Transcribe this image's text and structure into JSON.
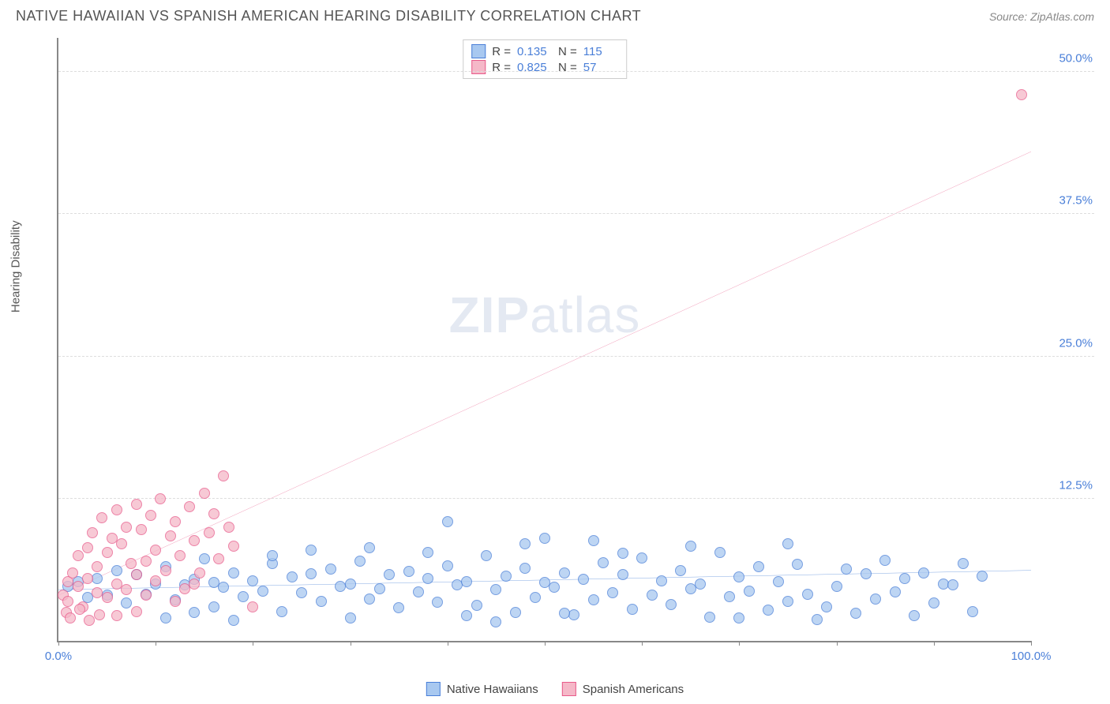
{
  "header": {
    "title": "NATIVE HAWAIIAN VS SPANISH AMERICAN HEARING DISABILITY CORRELATION CHART",
    "source": "Source: ZipAtlas.com"
  },
  "watermark": {
    "zip": "ZIP",
    "atlas": "atlas"
  },
  "chart": {
    "type": "scatter",
    "y_axis_label": "Hearing Disability",
    "x_range": [
      0,
      100
    ],
    "y_range": [
      0,
      53
    ],
    "x_ticks": [
      0,
      10,
      20,
      30,
      40,
      50,
      60,
      70,
      80,
      90,
      100
    ],
    "x_tick_labels": {
      "0": "0.0%",
      "100": "100.0%"
    },
    "y_ticks": [
      12.5,
      25.0,
      37.5,
      50.0
    ],
    "y_tick_labels": [
      "12.5%",
      "25.0%",
      "37.5%",
      "50.0%"
    ],
    "grid_color": "#dddddd",
    "axis_color": "#888888",
    "background_color": "#ffffff",
    "point_radius": 7,
    "series": [
      {
        "name": "Native Hawaiians",
        "fill": "#a8c8f0",
        "stroke": "#4a7fd8",
        "R": "0.135",
        "N": "115",
        "trend": {
          "x1": 0,
          "y1": 4.5,
          "x2": 100,
          "y2": 6.2,
          "color": "#2f6fd0",
          "width": 2
        },
        "points": [
          [
            1,
            4.8
          ],
          [
            2,
            5.2
          ],
          [
            3,
            3.8
          ],
          [
            4,
            5.5
          ],
          [
            5,
            4.0
          ],
          [
            6,
            6.2
          ],
          [
            7,
            3.3
          ],
          [
            8,
            5.8
          ],
          [
            9,
            4.1
          ],
          [
            10,
            5.0
          ],
          [
            11,
            6.5
          ],
          [
            12,
            3.6
          ],
          [
            13,
            4.9
          ],
          [
            14,
            5.4
          ],
          [
            15,
            7.2
          ],
          [
            16,
            3.0
          ],
          [
            16,
            5.1
          ],
          [
            17,
            4.7
          ],
          [
            18,
            6.0
          ],
          [
            19,
            3.9
          ],
          [
            20,
            5.3
          ],
          [
            21,
            4.4
          ],
          [
            22,
            6.8
          ],
          [
            23,
            2.6
          ],
          [
            24,
            5.6
          ],
          [
            25,
            4.2
          ],
          [
            26,
            5.9
          ],
          [
            27,
            3.5
          ],
          [
            28,
            6.3
          ],
          [
            29,
            4.8
          ],
          [
            30,
            5.0
          ],
          [
            30,
            2.0
          ],
          [
            31,
            7.0
          ],
          [
            32,
            3.7
          ],
          [
            33,
            4.6
          ],
          [
            34,
            5.8
          ],
          [
            35,
            2.9
          ],
          [
            36,
            6.1
          ],
          [
            37,
            4.3
          ],
          [
            38,
            5.5
          ],
          [
            39,
            3.4
          ],
          [
            40,
            6.6
          ],
          [
            40,
            10.5
          ],
          [
            41,
            4.9
          ],
          [
            42,
            5.2
          ],
          [
            43,
            3.1
          ],
          [
            44,
            7.5
          ],
          [
            45,
            4.5
          ],
          [
            46,
            5.7
          ],
          [
            47,
            2.5
          ],
          [
            48,
            6.4
          ],
          [
            49,
            3.8
          ],
          [
            50,
            5.1
          ],
          [
            50,
            9.0
          ],
          [
            51,
            4.7
          ],
          [
            52,
            6.0
          ],
          [
            53,
            2.3
          ],
          [
            54,
            5.4
          ],
          [
            55,
            3.6
          ],
          [
            56,
            6.9
          ],
          [
            57,
            4.2
          ],
          [
            58,
            5.8
          ],
          [
            59,
            2.8
          ],
          [
            60,
            7.3
          ],
          [
            61,
            4.0
          ],
          [
            62,
            5.3
          ],
          [
            63,
            3.2
          ],
          [
            64,
            6.2
          ],
          [
            65,
            4.6
          ],
          [
            66,
            5.0
          ],
          [
            67,
            2.1
          ],
          [
            68,
            7.8
          ],
          [
            69,
            3.9
          ],
          [
            70,
            5.6
          ],
          [
            71,
            4.4
          ],
          [
            72,
            6.5
          ],
          [
            73,
            2.7
          ],
          [
            74,
            5.2
          ],
          [
            75,
            3.5
          ],
          [
            75,
            8.5
          ],
          [
            76,
            6.7
          ],
          [
            77,
            4.1
          ],
          [
            78,
            1.9
          ],
          [
            79,
            3.0
          ],
          [
            80,
            4.8
          ],
          [
            81,
            6.3
          ],
          [
            82,
            2.4
          ],
          [
            83,
            5.9
          ],
          [
            84,
            3.7
          ],
          [
            85,
            7.1
          ],
          [
            86,
            4.3
          ],
          [
            87,
            5.5
          ],
          [
            88,
            2.2
          ],
          [
            89,
            6.0
          ],
          [
            90,
            3.3
          ],
          [
            91,
            5.0
          ],
          [
            92,
            4.9
          ],
          [
            93,
            6.8
          ],
          [
            94,
            2.6
          ],
          [
            95,
            5.7
          ],
          [
            11,
            2.0
          ],
          [
            14,
            2.5
          ],
          [
            18,
            1.8
          ],
          [
            22,
            7.5
          ],
          [
            26,
            8.0
          ],
          [
            32,
            8.2
          ],
          [
            45,
            1.7
          ],
          [
            55,
            8.8
          ],
          [
            65,
            8.3
          ],
          [
            70,
            2.0
          ],
          [
            38,
            7.8
          ],
          [
            42,
            2.2
          ],
          [
            48,
            8.5
          ],
          [
            52,
            2.4
          ],
          [
            58,
            7.7
          ]
        ]
      },
      {
        "name": "Spanish Americans",
        "fill": "#f5b8c8",
        "stroke": "#e85a8a",
        "R": "0.825",
        "N": "57",
        "trend": {
          "x1": 0,
          "y1": 4.0,
          "x2": 100,
          "y2": 43.0,
          "color": "#e85a8a",
          "width": 2
        },
        "points": [
          [
            0.5,
            4.0
          ],
          [
            1,
            5.2
          ],
          [
            1,
            3.5
          ],
          [
            1.5,
            6.0
          ],
          [
            2,
            4.8
          ],
          [
            2,
            7.5
          ],
          [
            2.5,
            3.0
          ],
          [
            3,
            8.2
          ],
          [
            3,
            5.5
          ],
          [
            3.5,
            9.5
          ],
          [
            4,
            6.5
          ],
          [
            4,
            4.2
          ],
          [
            4.5,
            10.8
          ],
          [
            5,
            7.8
          ],
          [
            5,
            3.8
          ],
          [
            5.5,
            9.0
          ],
          [
            6,
            5.0
          ],
          [
            6,
            11.5
          ],
          [
            6.5,
            8.5
          ],
          [
            7,
            4.5
          ],
          [
            7,
            10.0
          ],
          [
            7.5,
            6.8
          ],
          [
            8,
            12.0
          ],
          [
            8,
            5.8
          ],
          [
            8.5,
            9.8
          ],
          [
            9,
            7.0
          ],
          [
            9,
            4.0
          ],
          [
            9.5,
            11.0
          ],
          [
            10,
            8.0
          ],
          [
            10,
            5.3
          ],
          [
            10.5,
            12.5
          ],
          [
            11,
            6.2
          ],
          [
            11.5,
            9.2
          ],
          [
            12,
            10.5
          ],
          [
            12.5,
            7.5
          ],
          [
            13,
            4.6
          ],
          [
            13.5,
            11.8
          ],
          [
            14,
            8.8
          ],
          [
            14.5,
            6.0
          ],
          [
            15,
            13.0
          ],
          [
            15.5,
            9.5
          ],
          [
            16,
            11.2
          ],
          [
            16.5,
            7.2
          ],
          [
            17,
            14.5
          ],
          [
            17.5,
            10.0
          ],
          [
            18,
            8.3
          ],
          [
            0.8,
            2.5
          ],
          [
            1.2,
            2.0
          ],
          [
            2.2,
            2.8
          ],
          [
            3.2,
            1.8
          ],
          [
            4.2,
            2.3
          ],
          [
            20,
            3.0
          ],
          [
            12,
            3.5
          ],
          [
            8,
            2.6
          ],
          [
            6,
            2.2
          ],
          [
            14,
            5.0
          ],
          [
            99,
            48.0
          ]
        ]
      }
    ]
  },
  "stats_legend": {
    "rows": [
      {
        "swatch_fill": "#a8c8f0",
        "swatch_stroke": "#4a7fd8",
        "r_label": "R  =",
        "r_val": "0.135",
        "n_label": "N  =",
        "n_val": "115"
      },
      {
        "swatch_fill": "#f5b8c8",
        "swatch_stroke": "#e85a8a",
        "r_label": "R  =",
        "r_val": "0.825",
        "n_label": "N  =",
        "n_val": "57"
      }
    ]
  },
  "bottom_legend": {
    "items": [
      {
        "swatch_fill": "#a8c8f0",
        "swatch_stroke": "#4a7fd8",
        "label": "Native Hawaiians"
      },
      {
        "swatch_fill": "#f5b8c8",
        "swatch_stroke": "#e85a8a",
        "label": "Spanish Americans"
      }
    ]
  }
}
